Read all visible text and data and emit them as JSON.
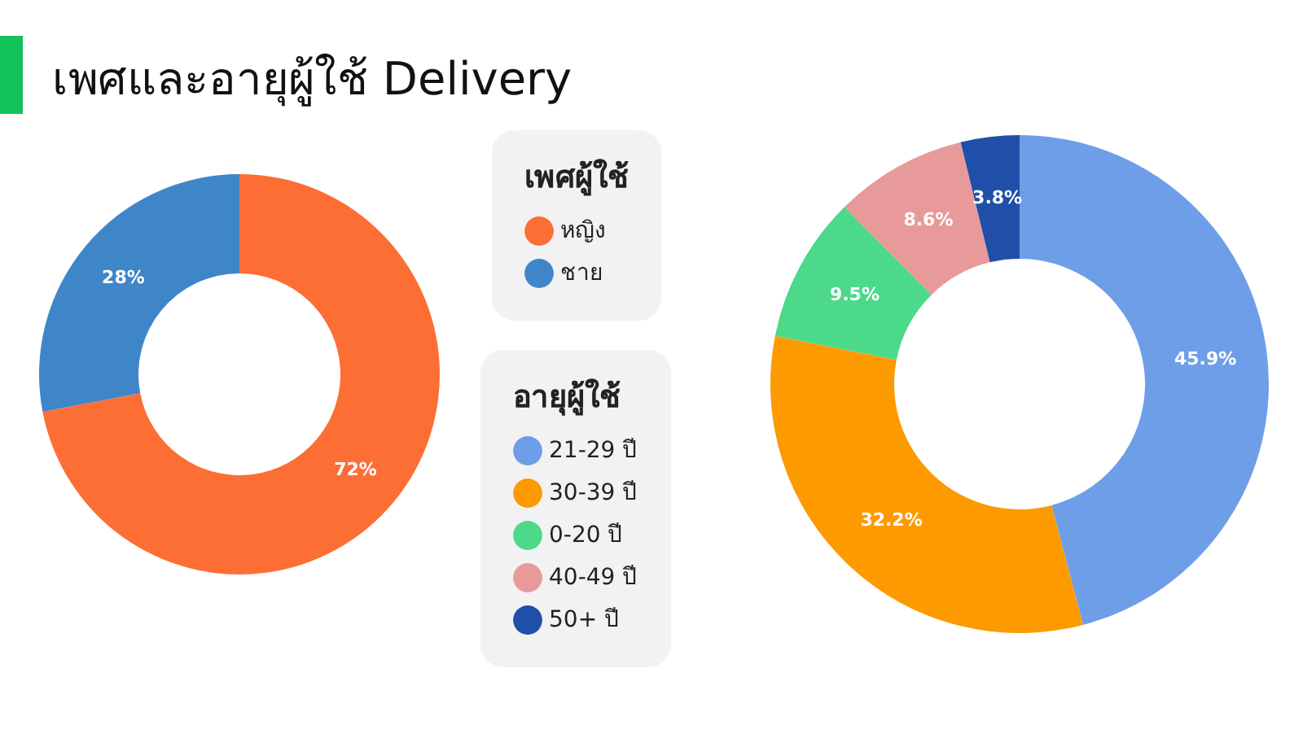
{
  "chart_data": [
    {
      "type": "donut",
      "title": "เพศและอายุผู้ใช้ Delivery",
      "legend_title": "เพศผู้ใช้",
      "categories": [
        "หญิง",
        "ชาย"
      ],
      "values": [
        72,
        28
      ],
      "value_labels": [
        "72%",
        "28%"
      ],
      "colors": [
        "#fd6e35",
        "#3f86c8"
      ],
      "legend": "right"
    },
    {
      "type": "donut",
      "legend_title": "อายุผู้ใช้",
      "categories": [
        "21-29 ปี",
        "30-39 ปี",
        "0-20 ปี",
        "40-49 ปี",
        "50+ ปี"
      ],
      "values": [
        45.9,
        32.2,
        9.5,
        8.6,
        3.8
      ],
      "value_labels": [
        "45.9%",
        "32.2%",
        "9.5%",
        "8.6%",
        "3.8%"
      ],
      "colors": [
        "#6f9ee8",
        "#fd9a00",
        "#4cd98a",
        "#e89a9a",
        "#1f4fa8"
      ],
      "legend": "left"
    }
  ]
}
